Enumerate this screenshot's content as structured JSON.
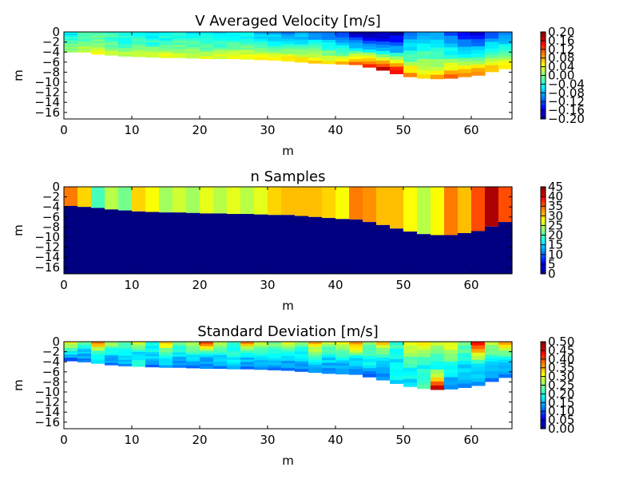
{
  "figure": {
    "background": "#ffffff"
  },
  "chart_data": [
    {
      "type": "heatmap",
      "title": "V Averaged Velocity [m/s]",
      "xlabel": "m",
      "ylabel": "m",
      "xlim": [
        0,
        66
      ],
      "ylim": [
        -17.3,
        0
      ],
      "xticks": [
        "0",
        "10",
        "20",
        "30",
        "40",
        "50",
        "60"
      ],
      "yticks": [
        "0",
        "−2",
        "−4",
        "−6",
        "−8",
        "−10",
        "−12",
        "−14",
        "−16"
      ],
      "colormap": "jet",
      "clim": [
        -0.2,
        0.2
      ],
      "colorbar_ticks": [
        "0.20",
        "0.16",
        "0.12",
        "0.08",
        "0.04",
        "0.00",
        "−0.04",
        "−0.08",
        "−0.12",
        "−0.16",
        "−0.20"
      ],
      "columns_x": [
        0,
        2,
        4,
        6,
        8,
        10,
        12,
        14,
        16,
        18,
        20,
        22,
        24,
        26,
        28,
        30,
        32,
        34,
        36,
        38,
        40,
        42,
        44,
        46,
        48,
        50,
        52,
        54,
        56,
        58,
        60,
        62,
        64,
        66
      ],
      "bed_depth": [
        -4.0,
        -4.0,
        -4.4,
        -4.6,
        -4.8,
        -4.9,
        -5.0,
        -5.1,
        -5.1,
        -5.2,
        -5.3,
        -5.3,
        -5.3,
        -5.4,
        -5.5,
        -5.6,
        -5.8,
        -6.0,
        -6.2,
        -6.3,
        -6.4,
        -6.5,
        -7.0,
        -7.6,
        -8.3,
        -8.9,
        -9.2,
        -9.3,
        -9.2,
        -8.9,
        -8.6,
        -7.9,
        -7.3
      ],
      "row_values": {
        "top": [
          -0.06,
          -0.02,
          -0.02,
          -0.03,
          -0.05,
          -0.06,
          -0.06,
          -0.05,
          -0.04,
          -0.05,
          -0.06,
          -0.07,
          -0.05,
          -0.06,
          -0.08,
          -0.09,
          -0.1,
          -0.1,
          -0.11,
          -0.12,
          -0.14,
          -0.18,
          -0.2,
          -0.2,
          -0.19,
          -0.12,
          -0.08,
          -0.1,
          -0.12,
          -0.15,
          -0.18,
          -0.12,
          -0.1
        ],
        "mid": [
          -0.02,
          -0.01,
          0.0,
          -0.02,
          -0.03,
          -0.02,
          -0.03,
          -0.03,
          -0.02,
          -0.02,
          -0.03,
          -0.03,
          -0.02,
          -0.02,
          -0.03,
          -0.04,
          -0.04,
          -0.03,
          -0.03,
          -0.04,
          -0.05,
          -0.06,
          -0.06,
          -0.07,
          -0.06,
          -0.04,
          -0.02,
          -0.03,
          -0.04,
          -0.05,
          -0.05,
          -0.04,
          -0.03
        ],
        "bottom": [
          0.02,
          0.03,
          0.04,
          0.04,
          0.03,
          0.04,
          0.05,
          0.05,
          0.05,
          0.04,
          0.04,
          0.05,
          0.05,
          0.06,
          0.06,
          0.07,
          0.08,
          0.08,
          0.07,
          0.07,
          0.08,
          0.14,
          0.17,
          0.19,
          0.18,
          0.1,
          0.06,
          0.09,
          0.12,
          0.12,
          0.11,
          0.09,
          0.07
        ]
      }
    },
    {
      "type": "heatmap",
      "title": "n Samples",
      "xlabel": "m",
      "ylabel": "m",
      "xlim": [
        0,
        66
      ],
      "ylim": [
        -17.3,
        0
      ],
      "xticks": [
        "0",
        "10",
        "20",
        "30",
        "40",
        "50",
        "60"
      ],
      "yticks": [
        "0",
        "−2",
        "−4",
        "−6",
        "−8",
        "−10",
        "−12",
        "−14",
        "−16"
      ],
      "colormap": "jet",
      "clim": [
        0,
        45
      ],
      "colorbar_ticks": [
        "45",
        "40",
        "35",
        "30",
        "25",
        "20",
        "15",
        "10",
        "5",
        "0"
      ],
      "columns_x": [
        0,
        2,
        4,
        6,
        8,
        10,
        12,
        14,
        16,
        18,
        20,
        22,
        24,
        26,
        28,
        30,
        32,
        34,
        36,
        38,
        40,
        42,
        44,
        46,
        48,
        50,
        52,
        54,
        56,
        58,
        60,
        62,
        64,
        66
      ],
      "bed_depth": [
        -3.8,
        -4.0,
        -4.2,
        -4.5,
        -4.7,
        -4.9,
        -5.0,
        -5.1,
        -5.1,
        -5.2,
        -5.3,
        -5.3,
        -5.4,
        -5.4,
        -5.5,
        -5.6,
        -5.6,
        -5.8,
        -6.0,
        -6.2,
        -6.4,
        -6.5,
        -7.0,
        -7.6,
        -8.3,
        -8.9,
        -9.4,
        -9.6,
        -9.6,
        -9.2,
        -8.8,
        -7.9,
        -7.0
      ],
      "values": [
        34,
        30,
        20,
        25,
        22,
        30,
        28,
        24,
        26,
        24,
        27,
        25,
        27,
        25,
        27,
        30,
        31,
        31,
        31,
        30,
        28,
        34,
        33,
        31,
        31,
        28,
        25,
        28,
        34,
        31,
        36,
        43,
        36
      ]
    },
    {
      "type": "heatmap",
      "title": "Standard Deviation [m/s]",
      "xlabel": "m",
      "ylabel": "m",
      "xlim": [
        0,
        66
      ],
      "ylim": [
        -17.3,
        0
      ],
      "xticks": [
        "0",
        "10",
        "20",
        "30",
        "40",
        "50",
        "60"
      ],
      "yticks": [
        "0",
        "−2",
        "−4",
        "−6",
        "−8",
        "−10",
        "−12",
        "−14",
        "−16"
      ],
      "colormap": "jet",
      "clim": [
        0,
        0.5
      ],
      "colorbar_ticks": [
        "0.50",
        "0.45",
        "0.40",
        "0.35",
        "0.30",
        "0.25",
        "0.20",
        "0.15",
        "0.10",
        "0.05",
        "0.00"
      ],
      "columns_x": [
        0,
        2,
        4,
        6,
        8,
        10,
        12,
        14,
        16,
        18,
        20,
        22,
        24,
        26,
        28,
        30,
        32,
        34,
        36,
        38,
        40,
        42,
        44,
        46,
        48,
        50,
        52,
        54,
        56,
        58,
        60,
        62,
        64,
        66
      ],
      "bed_depth": [
        -3.8,
        -4.0,
        -4.3,
        -4.6,
        -4.8,
        -4.9,
        -5.0,
        -5.1,
        -5.1,
        -5.2,
        -5.3,
        -5.3,
        -5.4,
        -5.4,
        -5.5,
        -5.6,
        -5.7,
        -5.9,
        -6.1,
        -6.3,
        -6.4,
        -6.5,
        -7.0,
        -7.6,
        -8.3,
        -8.9,
        -9.3,
        -9.5,
        -9.4,
        -9.1,
        -8.7,
        -7.9,
        -7.1
      ],
      "row_values": {
        "top": [
          0.32,
          0.25,
          0.4,
          0.28,
          0.22,
          0.3,
          0.2,
          0.35,
          0.25,
          0.3,
          0.42,
          0.28,
          0.22,
          0.38,
          0.3,
          0.25,
          0.32,
          0.24,
          0.36,
          0.28,
          0.3,
          0.4,
          0.26,
          0.34,
          0.22,
          0.3,
          0.35,
          0.28,
          0.32,
          0.26,
          0.45,
          0.3,
          0.38
        ],
        "mid": [
          0.2,
          0.16,
          0.22,
          0.18,
          0.2,
          0.16,
          0.18,
          0.2,
          0.17,
          0.19,
          0.16,
          0.18,
          0.2,
          0.17,
          0.18,
          0.19,
          0.16,
          0.18,
          0.2,
          0.17,
          0.19,
          0.18,
          0.2,
          0.16,
          0.18,
          0.21,
          0.19,
          0.17,
          0.2,
          0.18,
          0.19,
          0.17,
          0.18
        ],
        "bottom": [
          0.1,
          0.12,
          0.15,
          0.12,
          0.13,
          0.22,
          0.12,
          0.14,
          0.13,
          0.12,
          0.12,
          0.13,
          0.14,
          0.12,
          0.12,
          0.12,
          0.13,
          0.12,
          0.12,
          0.13,
          0.12,
          0.14,
          0.12,
          0.13,
          0.18,
          0.16,
          0.22,
          0.48,
          0.12,
          0.14,
          0.13,
          0.12,
          0.12
        ]
      }
    }
  ]
}
